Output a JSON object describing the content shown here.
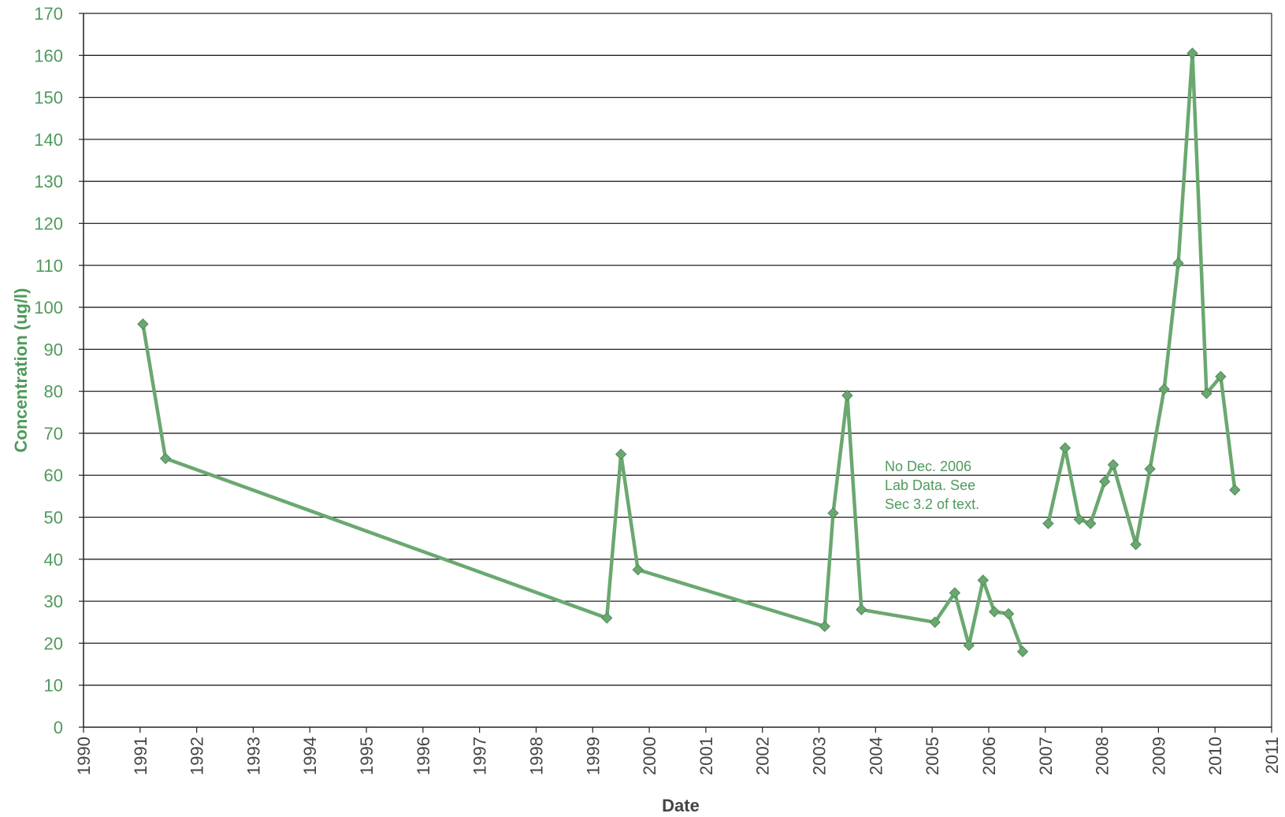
{
  "chart_data": {
    "type": "line",
    "xlabel": "Date",
    "ylabel": "Concentration (ug/l)",
    "xlim": [
      1990,
      2011
    ],
    "ylim": [
      0,
      170
    ],
    "x_ticks": [
      "1990",
      "1991",
      "1992",
      "1993",
      "1994",
      "1995",
      "1996",
      "1997",
      "1998",
      "1999",
      "2000",
      "2001",
      "2002",
      "2003",
      "2004",
      "2005",
      "2006",
      "2007",
      "2008",
      "2009",
      "2010",
      "2011"
    ],
    "y_ticks": [
      "0",
      "10",
      "20",
      "30",
      "40",
      "50",
      "60",
      "70",
      "80",
      "90",
      "100",
      "110",
      "120",
      "130",
      "140",
      "150",
      "160",
      "170"
    ],
    "grid": "horizontal",
    "line_color": "#6aa870",
    "series": [
      {
        "segments": [
          [
            {
              "x": 1991.05,
              "y": 96
            },
            {
              "x": 1991.45,
              "y": 64
            },
            {
              "x": 1999.25,
              "y": 26
            },
            {
              "x": 1999.5,
              "y": 65
            },
            {
              "x": 1999.8,
              "y": 37.5
            },
            {
              "x": 2003.1,
              "y": 24
            },
            {
              "x": 2003.25,
              "y": 51
            },
            {
              "x": 2003.5,
              "y": 79
            },
            {
              "x": 2003.75,
              "y": 28
            },
            {
              "x": 2005.05,
              "y": 25
            },
            {
              "x": 2005.4,
              "y": 32
            },
            {
              "x": 2005.65,
              "y": 19.5
            },
            {
              "x": 2005.9,
              "y": 35
            },
            {
              "x": 2006.1,
              "y": 27.5
            },
            {
              "x": 2006.35,
              "y": 27
            },
            {
              "x": 2006.6,
              "y": 18
            }
          ],
          [
            {
              "x": 2007.05,
              "y": 48.5
            },
            {
              "x": 2007.35,
              "y": 66.5
            },
            {
              "x": 2007.6,
              "y": 49.5
            },
            {
              "x": 2007.8,
              "y": 48.5
            },
            {
              "x": 2008.05,
              "y": 58.5
            },
            {
              "x": 2008.2,
              "y": 62.5
            },
            {
              "x": 2008.6,
              "y": 43.5
            },
            {
              "x": 2008.85,
              "y": 61.5
            },
            {
              "x": 2009.1,
              "y": 80.5
            },
            {
              "x": 2009.35,
              "y": 110.5
            },
            {
              "x": 2009.6,
              "y": 160.5
            },
            {
              "x": 2009.85,
              "y": 79.5
            },
            {
              "x": 2010.1,
              "y": 83.5
            },
            {
              "x": 2010.35,
              "y": 56.5
            }
          ]
        ]
      }
    ],
    "annotations": [
      {
        "lines": [
          "No Dec. 2006",
          "Lab Data. See",
          "Sec 3.2 of text."
        ]
      }
    ]
  }
}
